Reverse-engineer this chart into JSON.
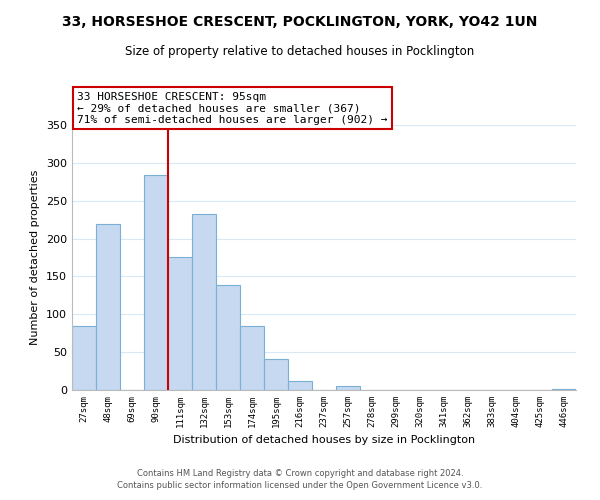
{
  "title": "33, HORSESHOE CRESCENT, POCKLINGTON, YORK, YO42 1UN",
  "subtitle": "Size of property relative to detached houses in Pocklington",
  "xlabel": "Distribution of detached houses by size in Pocklington",
  "ylabel": "Number of detached properties",
  "bar_labels": [
    "27sqm",
    "48sqm",
    "69sqm",
    "90sqm",
    "111sqm",
    "132sqm",
    "153sqm",
    "174sqm",
    "195sqm",
    "216sqm",
    "237sqm",
    "257sqm",
    "278sqm",
    "299sqm",
    "320sqm",
    "341sqm",
    "362sqm",
    "383sqm",
    "404sqm",
    "425sqm",
    "446sqm"
  ],
  "bar_values": [
    85,
    219,
    0,
    284,
    176,
    232,
    139,
    85,
    41,
    12,
    0,
    5,
    0,
    0,
    0,
    0,
    0,
    0,
    0,
    0,
    1
  ],
  "bar_color": "#c6d9f1",
  "bar_edge_color": "#7bafd4",
  "vline_x": 3.5,
  "vline_color": "#cc0000",
  "ylim": [
    0,
    350
  ],
  "yticks": [
    0,
    50,
    100,
    150,
    200,
    250,
    300,
    350
  ],
  "annotation_line1": "33 HORSESHOE CRESCENT: 95sqm",
  "annotation_line2": "← 29% of detached houses are smaller (367)",
  "annotation_line3": "71% of semi-detached houses are larger (902) →",
  "annotation_box_color": "#ffffff",
  "annotation_box_edge": "#cc0000",
  "footer_line1": "Contains HM Land Registry data © Crown copyright and database right 2024.",
  "footer_line2": "Contains public sector information licensed under the Open Government Licence v3.0.",
  "background_color": "#ffffff",
  "grid_color": "#d8e8f5"
}
